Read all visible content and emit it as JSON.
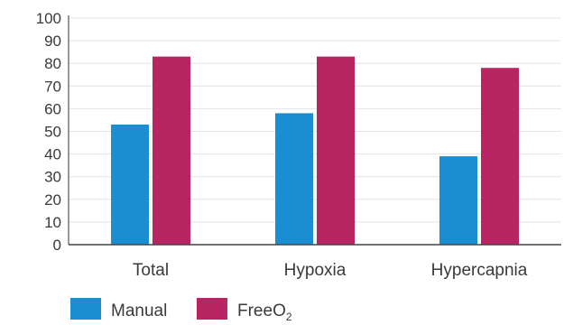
{
  "chart_data": {
    "type": "bar",
    "categories": [
      "Total",
      "Hypoxia",
      "Hypercapnia"
    ],
    "series": [
      {
        "name": "Manual",
        "color": "#1a8ed1",
        "values": [
          53,
          58,
          39
        ]
      },
      {
        "name": "FreeO2",
        "display_main": "FreeO",
        "display_sub": "2",
        "color": "#b82562",
        "values": [
          83,
          83,
          78
        ]
      }
    ],
    "ylim": [
      0,
      100
    ],
    "yticks": [
      0,
      10,
      20,
      30,
      40,
      50,
      60,
      70,
      80,
      90,
      100
    ],
    "grid": true,
    "legend": "bottom-left"
  }
}
